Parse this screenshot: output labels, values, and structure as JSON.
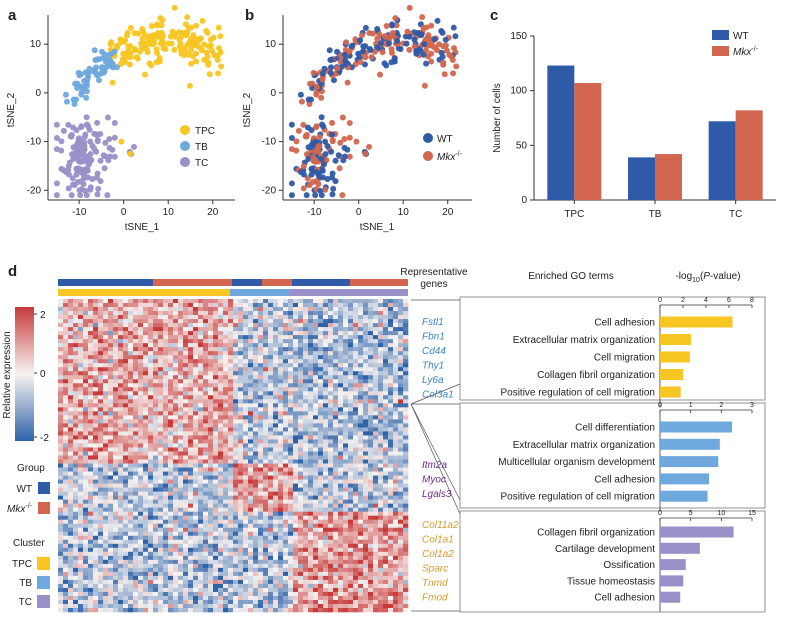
{
  "colors": {
    "tpc": "#F7C623",
    "tb": "#6FA8DC",
    "tc": "#9B8FC8",
    "wt": "#2F5AA8",
    "mkx": "#D2664E",
    "heat_high": "#C73A3A",
    "heat_mid": "#F7F4F2",
    "heat_low": "#2E62A8"
  },
  "panel_labels": [
    "a",
    "b",
    "c",
    "d"
  ],
  "panel_a": {
    "xlabel": "tSNE_1",
    "ylabel": "tSNE_2",
    "xticks": [
      "-10",
      "0",
      "10",
      "20"
    ],
    "yticks": [
      "10",
      "0",
      "-10",
      "-20"
    ],
    "legend": [
      {
        "label": "TPC",
        "color": "tpc"
      },
      {
        "label": "TB",
        "color": "tb"
      },
      {
        "label": "TC",
        "color": "tc"
      }
    ]
  },
  "panel_b": {
    "xlabel": "tSNE_1",
    "ylabel": "tSNE_2",
    "xticks": [
      "-10",
      "0",
      "10",
      "20"
    ],
    "yticks": [
      "10",
      "0",
      "-10",
      "-20"
    ],
    "legend": [
      {
        "label": "WT",
        "color": "wt"
      },
      {
        "label": "Mkx",
        "sup": "-/-",
        "color": "mkx"
      }
    ]
  },
  "chart_data": [
    {
      "type": "scatter",
      "panel": "a",
      "xlabel": "tSNE_1",
      "ylabel": "tSNE_2",
      "xlim": [
        -17,
        25
      ],
      "ylim": [
        -22,
        16
      ],
      "clusters": [
        {
          "name": "TPC",
          "x_range": [
            -4,
            22
          ],
          "y_range": [
            2,
            15
          ],
          "approx_count": 160
        },
        {
          "name": "TB",
          "x_range": [
            -12,
            -2
          ],
          "y_range": [
            -2,
            10
          ],
          "approx_count": 55
        },
        {
          "name": "TC",
          "x_range": [
            -15,
            -3
          ],
          "y_range": [
            -21,
            -5
          ],
          "approx_count": 130
        }
      ]
    },
    {
      "type": "scatter",
      "panel": "b",
      "xlabel": "tSNE_1",
      "ylabel": "tSNE_2",
      "xlim": [
        -17,
        25
      ],
      "ylim": [
        -22,
        16
      ],
      "series": [
        {
          "name": "WT"
        },
        {
          "name": "Mkx-/-"
        }
      ]
    },
    {
      "type": "bar",
      "panel": "c",
      "title": "",
      "ylabel": "Number of cells",
      "categories": [
        "TPC",
        "TB",
        "TC"
      ],
      "ylim": [
        0,
        150
      ],
      "yticks": [
        "0",
        "50",
        "100",
        "150"
      ],
      "series": [
        {
          "name": "WT",
          "values": [
            123,
            39,
            72
          ]
        },
        {
          "name": "Mkx-/-",
          "values": [
            107,
            42,
            82
          ]
        }
      ],
      "legend": [
        {
          "label": "WT",
          "color": "wt"
        },
        {
          "label": "Mkx",
          "sup": "-/-",
          "color": "mkx"
        }
      ]
    },
    {
      "type": "bar",
      "orientation": "horizontal",
      "panel": "d-go-1",
      "xlim": [
        0,
        8
      ],
      "xticks": [
        "0",
        "2",
        "4",
        "6",
        "8"
      ],
      "categories": [
        "Cell adhesion",
        "Extracellular matrix organization",
        "Cell migration",
        "Collagen fibril organization",
        "Positive regulation of cell migration"
      ],
      "values": [
        6.3,
        2.7,
        2.6,
        2.0,
        1.8
      ],
      "color": "tpc"
    },
    {
      "type": "bar",
      "orientation": "horizontal",
      "panel": "d-go-2",
      "xlim": [
        0,
        3
      ],
      "xticks": [
        "0",
        "1",
        "2",
        "3"
      ],
      "categories": [
        "Cell differentiation",
        "Extracellular matrix organization",
        "Multicellular organism development",
        "Cell adhesion",
        "Positive regulation of cell migration"
      ],
      "values": [
        2.35,
        1.95,
        1.9,
        1.6,
        1.55
      ],
      "color": "tb"
    },
    {
      "type": "bar",
      "orientation": "horizontal",
      "panel": "d-go-3",
      "xlim": [
        0,
        15
      ],
      "xticks": [
        "0",
        "5",
        "10",
        "15"
      ],
      "categories": [
        "Collagen fibril organization",
        "Cartilage development",
        "Ossification",
        "Tissue homeostasis",
        "Cell adhesion"
      ],
      "values": [
        12.0,
        6.5,
        4.2,
        3.8,
        3.3
      ],
      "color": "tc"
    }
  ],
  "panel_d": {
    "representative_genes_label": "Representative genes",
    "enriched_go_label": "Enriched GO terms",
    "pvalue_label": "-log10(P-value)",
    "colorbar_label": "Relative expression",
    "colorbar_ticks": [
      "2",
      "0",
      "-2"
    ],
    "group_label": "Group",
    "group_legend": [
      {
        "label": "WT",
        "color": "wt"
      },
      {
        "label": "Mkx",
        "sup": "-/-",
        "color": "mkx"
      }
    ],
    "cluster_label": "Cluster",
    "cluster_legend": [
      {
        "label": "TPC",
        "color": "tpc"
      },
      {
        "label": "TB",
        "color": "tb"
      },
      {
        "label": "TC",
        "color": "tc"
      }
    ],
    "gene_groups": [
      {
        "color": "tb",
        "genes": [
          "Fstl1",
          "Fbn1",
          "Cd44",
          "Thy1",
          "Ly6a",
          "Col3a1"
        ]
      },
      {
        "color": "purple",
        "genes": [
          "Itm2a",
          "Myoc",
          "Lgals3"
        ]
      },
      {
        "color": "orange",
        "genes": [
          "Col11a2",
          "Col1a1",
          "Col1a2",
          "Sparc",
          "Tnmd",
          "Fmod"
        ]
      }
    ]
  }
}
